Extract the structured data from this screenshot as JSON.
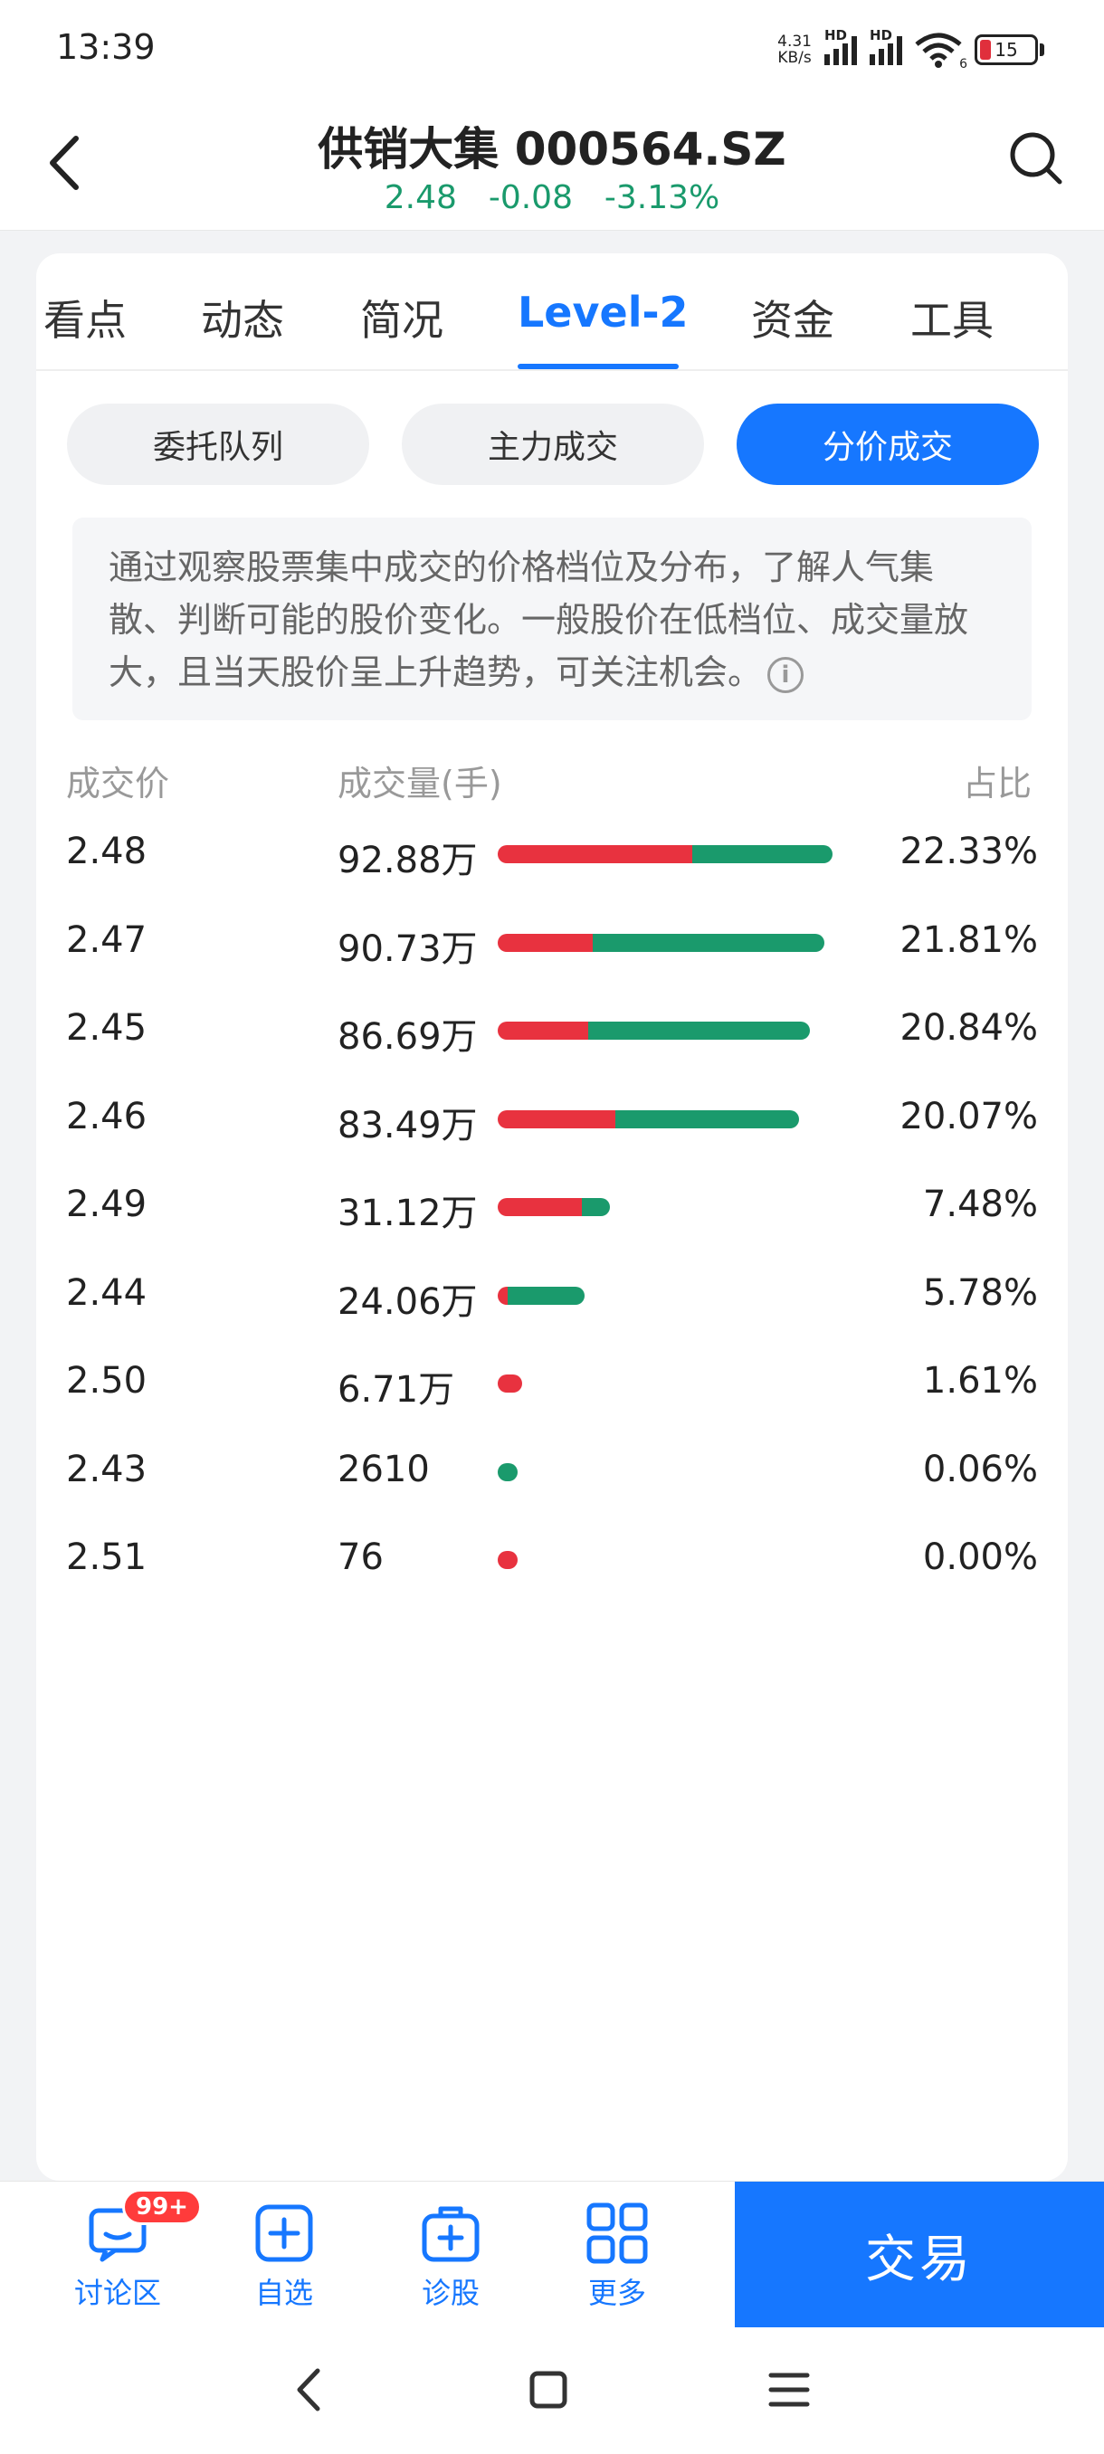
{
  "status_bar": {
    "time": "13:39",
    "net_speed_top": "4.31",
    "net_speed_bottom": "KB/s",
    "hd_label": "HD",
    "wifi_sub": "6",
    "battery_level": "15"
  },
  "header": {
    "title": "供销大集 000564.SZ",
    "quote": "2.48  -0.08  -3.13%",
    "quote_color": "#1a9a6c"
  },
  "tabs": [
    {
      "label": "看点"
    },
    {
      "label": "动态"
    },
    {
      "label": "简况"
    },
    {
      "label": "Level-2",
      "active": true
    },
    {
      "label": "资金"
    },
    {
      "label": "工具"
    }
  ],
  "segments": [
    {
      "label": "委托队列"
    },
    {
      "label": "主力成交"
    },
    {
      "label": "分价成交",
      "active": true
    }
  ],
  "description": "通过观察股票集中成交的价格档位及分布，了解人气集散、判断可能的股价变化。一般股价在低档位、成交量放大，且当天股价呈上升趋势，可关注机会。",
  "info_icon": "i",
  "table": {
    "headers": {
      "price": "成交价",
      "volume": "成交量(手)",
      "ratio": "占比"
    },
    "rows": [
      {
        "price": "2.48",
        "volume": "92.88万",
        "ratio": "22.33%",
        "share": 22.33,
        "buy_fraction": 0.58
      },
      {
        "price": "2.47",
        "volume": "90.73万",
        "ratio": "21.81%",
        "share": 21.81,
        "buy_fraction": 0.29
      },
      {
        "price": "2.45",
        "volume": "86.69万",
        "ratio": "20.84%",
        "share": 20.84,
        "buy_fraction": 0.29
      },
      {
        "price": "2.46",
        "volume": "83.49万",
        "ratio": "20.07%",
        "share": 20.07,
        "buy_fraction": 0.39
      },
      {
        "price": "2.49",
        "volume": "31.12万",
        "ratio": "7.48%",
        "share": 7.48,
        "buy_fraction": 0.75
      },
      {
        "price": "2.44",
        "volume": "24.06万",
        "ratio": "5.78%",
        "share": 5.78,
        "buy_fraction": 0.12
      },
      {
        "price": "2.50",
        "volume": "6.71万",
        "ratio": "1.61%",
        "share": 1.61,
        "buy_fraction": 1.0
      },
      {
        "price": "2.43",
        "volume": "2610",
        "ratio": "0.06%",
        "share": 0.06,
        "buy_fraction": 0.0
      },
      {
        "price": "2.51",
        "volume": "76",
        "ratio": "0.00%",
        "share": 0.0,
        "buy_fraction": 1.0
      }
    ],
    "buy_color": "#e8323f",
    "sell_color": "#1a9a6c"
  },
  "bottom_nav": {
    "items": [
      {
        "label": "讨论区",
        "icon": "chat-icon",
        "badge": "99+"
      },
      {
        "label": "自选",
        "icon": "add-watchlist-icon"
      },
      {
        "label": "诊股",
        "icon": "diagnose-icon"
      },
      {
        "label": "更多",
        "icon": "grid-more-icon"
      }
    ],
    "trade_label": "交易"
  },
  "accent_color": "#1677ff"
}
